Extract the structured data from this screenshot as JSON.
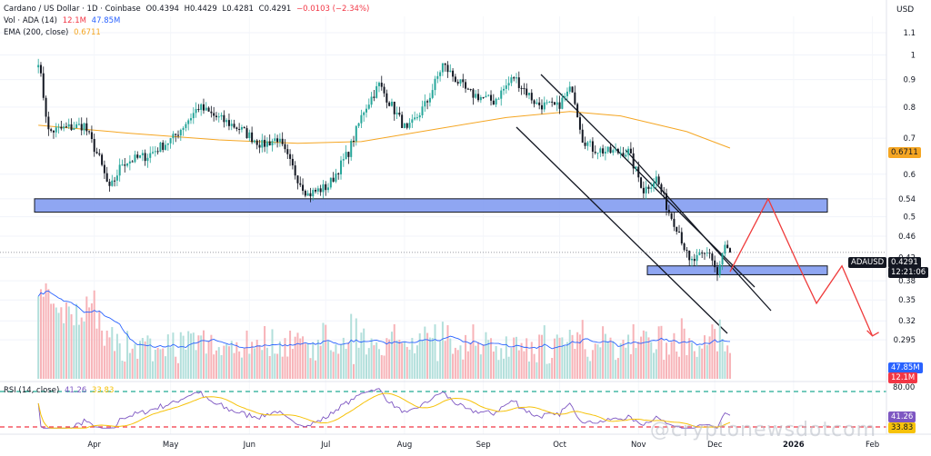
{
  "header": {
    "title": "Cardano / US Dollar · 1D · Coinbase",
    "open": "O0.4394",
    "high": "H0.4429",
    "low": "L0.4281",
    "close": "C0.4291",
    "change": "−0.0103 (−2.34%)",
    "vol_label": "Vol · ADA (14)",
    "vol_value1": "12.1M",
    "vol_value2": "47.85M",
    "ema_label": "EMA (200, close)",
    "ema_value": "0.6711"
  },
  "currency": "USD",
  "symbol_tag": "ADAUSD",
  "price_tag": "0.4291",
  "countdown": "12:21:06",
  "ema_tag": "0.6711",
  "vol_tag1": "47.85M",
  "vol_tag2": "12.1M",
  "rsi": {
    "label": "RSI (14, close)",
    "value": "41.26",
    "ma_value": "33.83",
    "upper": "80.00",
    "lower": "20.00"
  },
  "watermark": "@cryptonewsdotcom",
  "colors": {
    "up": "#26a69a",
    "down": "#131722",
    "ema": "#f5a623",
    "zone": "#7b96f0",
    "projection": "#ef3b3b",
    "rsi": "#7e57c2",
    "rsi_ma": "#f6c20a",
    "vol_ma": "#2962ff",
    "rsi_upper": "#22ab94",
    "rsi_lower": "#f23645"
  },
  "chart_data": {
    "type": "candlestick",
    "title": "Cardano / US Dollar · 1D · Coinbase",
    "scale": "log",
    "y_axis_ticks": [
      1.1,
      1.0,
      0.9,
      0.8,
      0.7,
      0.6,
      0.54,
      0.5,
      0.46,
      0.42,
      0.38,
      0.35,
      0.32,
      0.295
    ],
    "x_axis_labels": [
      "Apr",
      "May",
      "Jun",
      "Jul",
      "Aug",
      "Sep",
      "Oct",
      "Nov",
      "Dec",
      "2026",
      "Feb"
    ],
    "price_path": [
      {
        "date": "Mar 10",
        "price": 0.98
      },
      {
        "date": "Mar 14",
        "price": 0.72
      },
      {
        "date": "Mar 20",
        "price": 0.73
      },
      {
        "date": "Mar 28",
        "price": 0.74
      },
      {
        "date": "Apr 03",
        "price": 0.64
      },
      {
        "date": "Apr 07",
        "price": 0.56
      },
      {
        "date": "Apr 12",
        "price": 0.63
      },
      {
        "date": "Apr 22",
        "price": 0.65
      },
      {
        "date": "May 02",
        "price": 0.7
      },
      {
        "date": "May 12",
        "price": 0.8
      },
      {
        "date": "May 18",
        "price": 0.77
      },
      {
        "date": "May 28",
        "price": 0.73
      },
      {
        "date": "Jun 06",
        "price": 0.68
      },
      {
        "date": "Jun 12",
        "price": 0.7
      },
      {
        "date": "Jun 20",
        "price": 0.59
      },
      {
        "date": "Jun 24",
        "price": 0.55
      },
      {
        "date": "Jul 02",
        "price": 0.57
      },
      {
        "date": "Jul 10",
        "price": 0.66
      },
      {
        "date": "Jul 16",
        "price": 0.79
      },
      {
        "date": "Jul 22",
        "price": 0.88
      },
      {
        "date": "Aug 02",
        "price": 0.72
      },
      {
        "date": "Aug 10",
        "price": 0.82
      },
      {
        "date": "Aug 16",
        "price": 0.96
      },
      {
        "date": "Aug 26",
        "price": 0.85
      },
      {
        "date": "Sep 05",
        "price": 0.82
      },
      {
        "date": "Sep 13",
        "price": 0.91
      },
      {
        "date": "Sep 22",
        "price": 0.81
      },
      {
        "date": "Sep 30",
        "price": 0.8
      },
      {
        "date": "Oct 06",
        "price": 0.87
      },
      {
        "date": "Oct 10",
        "price": 0.7
      },
      {
        "date": "Oct 14",
        "price": 0.67
      },
      {
        "date": "Oct 20",
        "price": 0.66
      },
      {
        "date": "Oct 28",
        "price": 0.66
      },
      {
        "date": "Nov 03",
        "price": 0.56
      },
      {
        "date": "Nov 08",
        "price": 0.59
      },
      {
        "date": "Nov 13",
        "price": 0.51
      },
      {
        "date": "Nov 17",
        "price": 0.47
      },
      {
        "date": "Nov 21",
        "price": 0.41
      },
      {
        "date": "Nov 25",
        "price": 0.42
      },
      {
        "date": "Nov 29",
        "price": 0.43
      },
      {
        "date": "Dec 02",
        "price": 0.39
      },
      {
        "date": "Dec 05",
        "price": 0.44
      },
      {
        "date": "Dec 07",
        "price": 0.4291
      }
    ],
    "ema_200_path": [
      {
        "date": "Mar 10",
        "price": 0.74
      },
      {
        "date": "Apr 15",
        "price": 0.715
      },
      {
        "date": "May 20",
        "price": 0.695
      },
      {
        "date": "Jun 20",
        "price": 0.685
      },
      {
        "date": "Jul 15",
        "price": 0.69
      },
      {
        "date": "Aug 15",
        "price": 0.73
      },
      {
        "date": "Sep 10",
        "price": 0.765
      },
      {
        "date": "Oct 05",
        "price": 0.785
      },
      {
        "date": "Oct 25",
        "price": 0.77
      },
      {
        "date": "Nov 20",
        "price": 0.72
      },
      {
        "date": "Dec 07",
        "price": 0.6711
      }
    ],
    "support_zones": [
      {
        "name": "upper zone",
        "from_price": 0.51,
        "to_price": 0.54
      },
      {
        "name": "lower zone",
        "from_price": 0.39,
        "to_price": 0.405
      }
    ],
    "projection_path": [
      {
        "date": "Dec 07",
        "price": 0.395
      },
      {
        "date": "Dec 22",
        "price": 0.54
      },
      {
        "date": "Jan 03",
        "price": 0.405
      },
      {
        "date": "Jan 10",
        "price": 0.345
      },
      {
        "date": "Jan 20",
        "price": 0.405
      },
      {
        "date": "Feb 01",
        "price": 0.3
      }
    ],
    "volume_ma": 47.85,
    "volume_last": 12.1,
    "rsi_last": 41.26,
    "rsi_ma_last": 33.83,
    "rsi_bands": [
      80,
      20
    ]
  }
}
